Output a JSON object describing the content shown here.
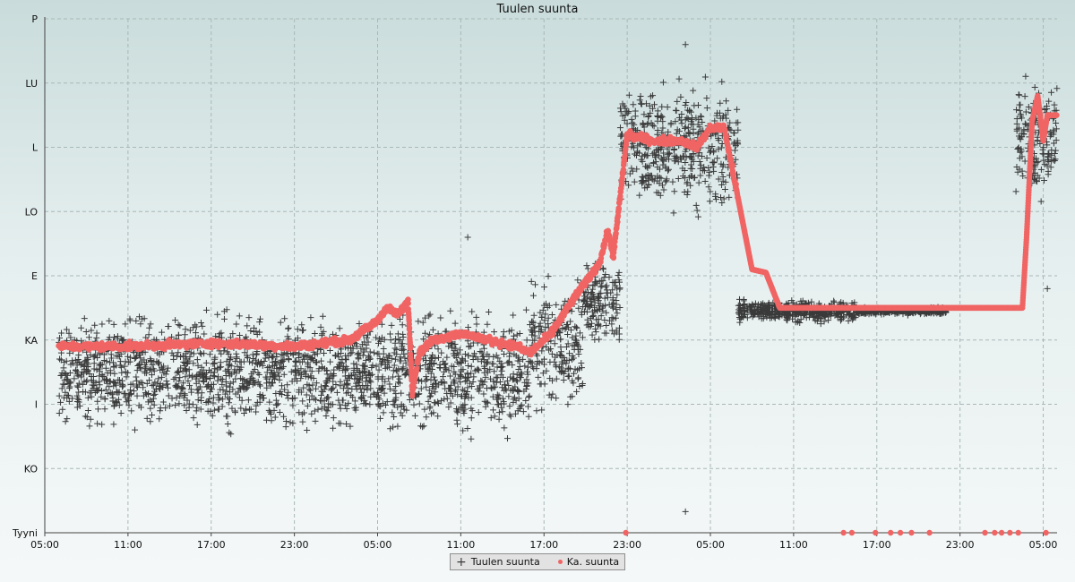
{
  "chart_data": {
    "type": "scatter",
    "title": "Tuulen suunta",
    "y_ticks": [
      "Tyyni",
      "KO",
      "I",
      "KA",
      "E",
      "LO",
      "L",
      "LU",
      "P"
    ],
    "x_ticks": [
      "05:00",
      "11:00",
      "17:00",
      "23:00",
      "05:00",
      "11:00",
      "17:00",
      "23:00",
      "05:00",
      "11:00",
      "17:00",
      "23:00",
      "05:00"
    ],
    "x_range_hours": [
      0,
      73
    ],
    "grid": true,
    "legend_position": "bottom-center",
    "series": [
      {
        "name": "Tuulen suunta",
        "marker": "cross",
        "color": "#3a3a3a",
        "segments": [
          {
            "from": 1.0,
            "to": 24.0,
            "center": 2.5,
            "spread": 0.8
          },
          {
            "from": 24.0,
            "to": 35.0,
            "center": 2.5,
            "spread": 0.85
          },
          {
            "from": 35.0,
            "to": 38.8,
            "center": 2.9,
            "spread": 0.9
          },
          {
            "from": 38.8,
            "to": 41.5,
            "center": 3.6,
            "spread": 0.6
          },
          {
            "from": 41.5,
            "to": 50.0,
            "center": 6.0,
            "spread": 0.9
          },
          {
            "from": 50.0,
            "to": 58.5,
            "center": 3.45,
            "spread": 0.15
          },
          {
            "from": 58.5,
            "to": 65.0,
            "center": 3.45,
            "spread": 0.05
          },
          {
            "from": 70.0,
            "to": 73.0,
            "center": 6.2,
            "spread": 0.9
          }
        ],
        "outliers": [
          {
            "x": 46.2,
            "y": 7.6
          },
          {
            "x": 46.2,
            "y": 0.33
          },
          {
            "x": 40.9,
            "y": 3.35
          },
          {
            "x": 30.5,
            "y": 4.6
          },
          {
            "x": 29.3,
            "y": 2.2
          },
          {
            "x": 72.3,
            "y": 3.8
          }
        ]
      },
      {
        "name": "Ka. suunta",
        "marker": "dot",
        "color": "#f06464",
        "path": [
          {
            "x": 1.0,
            "y": 2.9
          },
          {
            "x": 6.0,
            "y": 2.9
          },
          {
            "x": 12.0,
            "y": 2.95
          },
          {
            "x": 18.0,
            "y": 2.9
          },
          {
            "x": 22.0,
            "y": 3.0
          },
          {
            "x": 24.0,
            "y": 3.3
          },
          {
            "x": 24.6,
            "y": 3.5
          },
          {
            "x": 25.5,
            "y": 3.4
          },
          {
            "x": 26.2,
            "y": 3.6
          },
          {
            "x": 26.5,
            "y": 2.2
          },
          {
            "x": 27.0,
            "y": 2.8
          },
          {
            "x": 28.0,
            "y": 3.0
          },
          {
            "x": 30.0,
            "y": 3.1
          },
          {
            "x": 34.0,
            "y": 2.9
          },
          {
            "x": 35.0,
            "y": 2.8
          },
          {
            "x": 36.5,
            "y": 3.1
          },
          {
            "x": 38.0,
            "y": 3.6
          },
          {
            "x": 40.0,
            "y": 4.2
          },
          {
            "x": 40.6,
            "y": 4.7
          },
          {
            "x": 41.0,
            "y": 4.3
          },
          {
            "x": 42.0,
            "y": 6.2
          },
          {
            "x": 43.0,
            "y": 6.15
          },
          {
            "x": 44.0,
            "y": 6.1
          },
          {
            "x": 46.0,
            "y": 6.1
          },
          {
            "x": 47.0,
            "y": 6.0
          },
          {
            "x": 48.0,
            "y": 6.3
          },
          {
            "x": 49.0,
            "y": 6.3
          },
          {
            "x": 51.0,
            "y": 4.1
          },
          {
            "x": 52.0,
            "y": 4.05
          },
          {
            "x": 53.0,
            "y": 3.5
          },
          {
            "x": 58.0,
            "y": 3.5
          },
          {
            "x": 64.0,
            "y": 3.5
          },
          {
            "x": 70.5,
            "y": 3.5
          },
          {
            "x": 70.8,
            "y": 4.6
          },
          {
            "x": 71.2,
            "y": 6.4
          },
          {
            "x": 71.6,
            "y": 6.8
          },
          {
            "x": 72.0,
            "y": 6.1
          },
          {
            "x": 72.3,
            "y": 6.5
          },
          {
            "x": 73.0,
            "y": 6.5
          }
        ],
        "calm_points_x": [
          41.9,
          57.6,
          58.2,
          59.9,
          61.0,
          61.7,
          62.5,
          63.8,
          67.8,
          68.5,
          69.0,
          69.6,
          70.2,
          72.2
        ]
      }
    ]
  }
}
